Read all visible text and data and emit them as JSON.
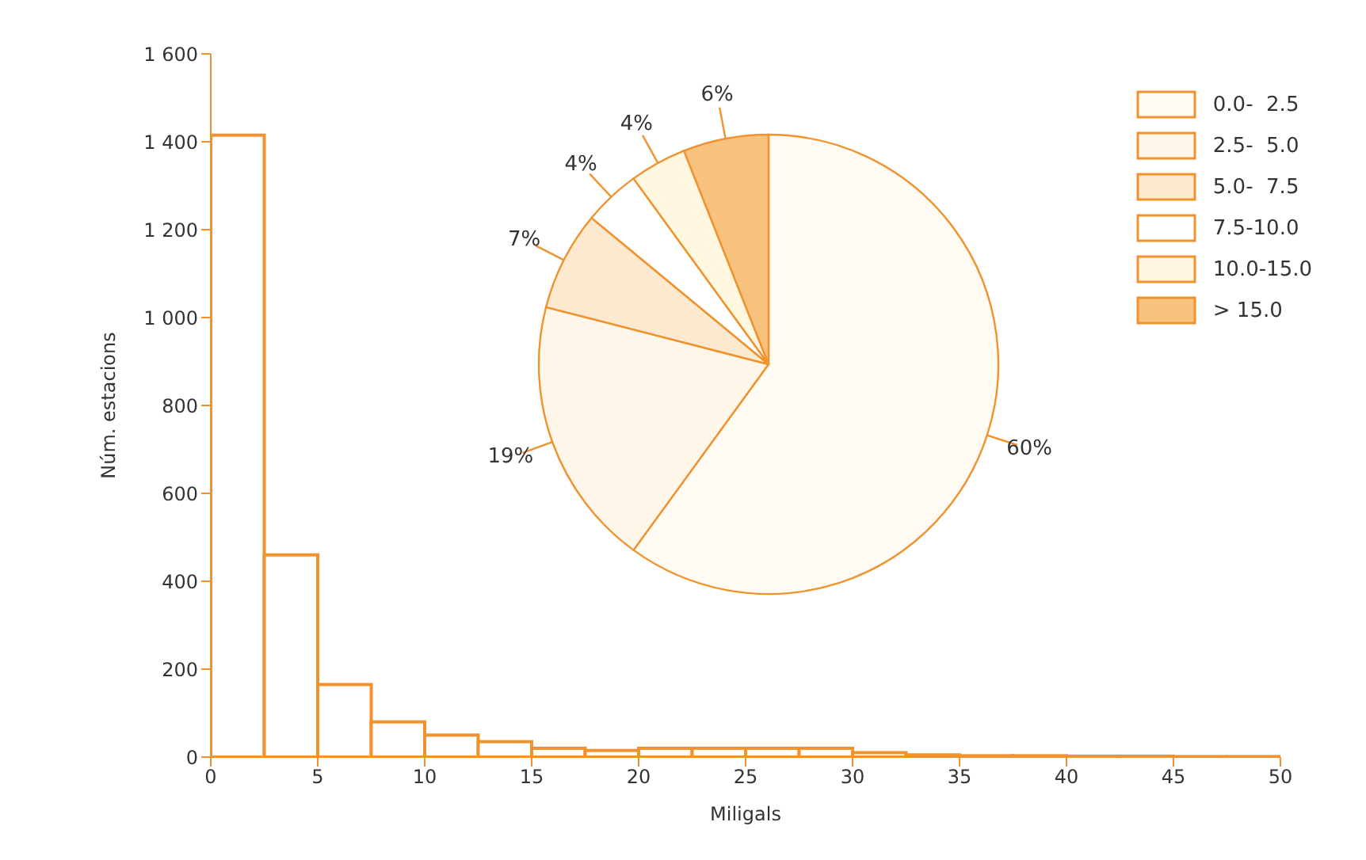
{
  "chart_data": [
    {
      "type": "histogram",
      "xlabel": "Miligals",
      "ylabel": "Núm. estacions",
      "color": "#f0922e",
      "bins": [
        0,
        2.5,
        5,
        7.5,
        10,
        12.5,
        15,
        17.5,
        20,
        22.5,
        25,
        27.5,
        30,
        32.5,
        35,
        37.5,
        40,
        42.5,
        45,
        47.5,
        50
      ],
      "values": [
        1415,
        460,
        165,
        80,
        50,
        35,
        20,
        15,
        20,
        20,
        20,
        20,
        10,
        5,
        3,
        3,
        2,
        2,
        1,
        1
      ],
      "xlim": [
        0,
        50
      ],
      "xticks": [
        0,
        5,
        10,
        15,
        20,
        25,
        30,
        35,
        40,
        45,
        50
      ],
      "ylim": [
        0,
        1600
      ],
      "yticks": [
        0,
        200,
        400,
        600,
        800,
        {
          "value": 1000,
          "label": "1 000"
        },
        {
          "value": 1200,
          "label": "1 200"
        },
        {
          "value": 1400,
          "label": "1 400"
        },
        {
          "value": 1600,
          "label": "1 600"
        }
      ]
    },
    {
      "type": "pie",
      "categories": [
        "0.0-  2.5",
        "2.5-  5.0",
        "5.0-  7.5",
        "7.5-10.0",
        "10.0-15.0",
        "> 15.0"
      ],
      "values": [
        60,
        19,
        7,
        4,
        4,
        6
      ],
      "value_labels": [
        "60%",
        "19%",
        "7%",
        "4%",
        "4%",
        "6%"
      ],
      "colors": [
        "#fffaf2",
        "#fff6ea",
        "#fde9cf",
        "#ffffff",
        "#fff7df",
        "#f7c27e"
      ],
      "legend": "top right"
    }
  ]
}
